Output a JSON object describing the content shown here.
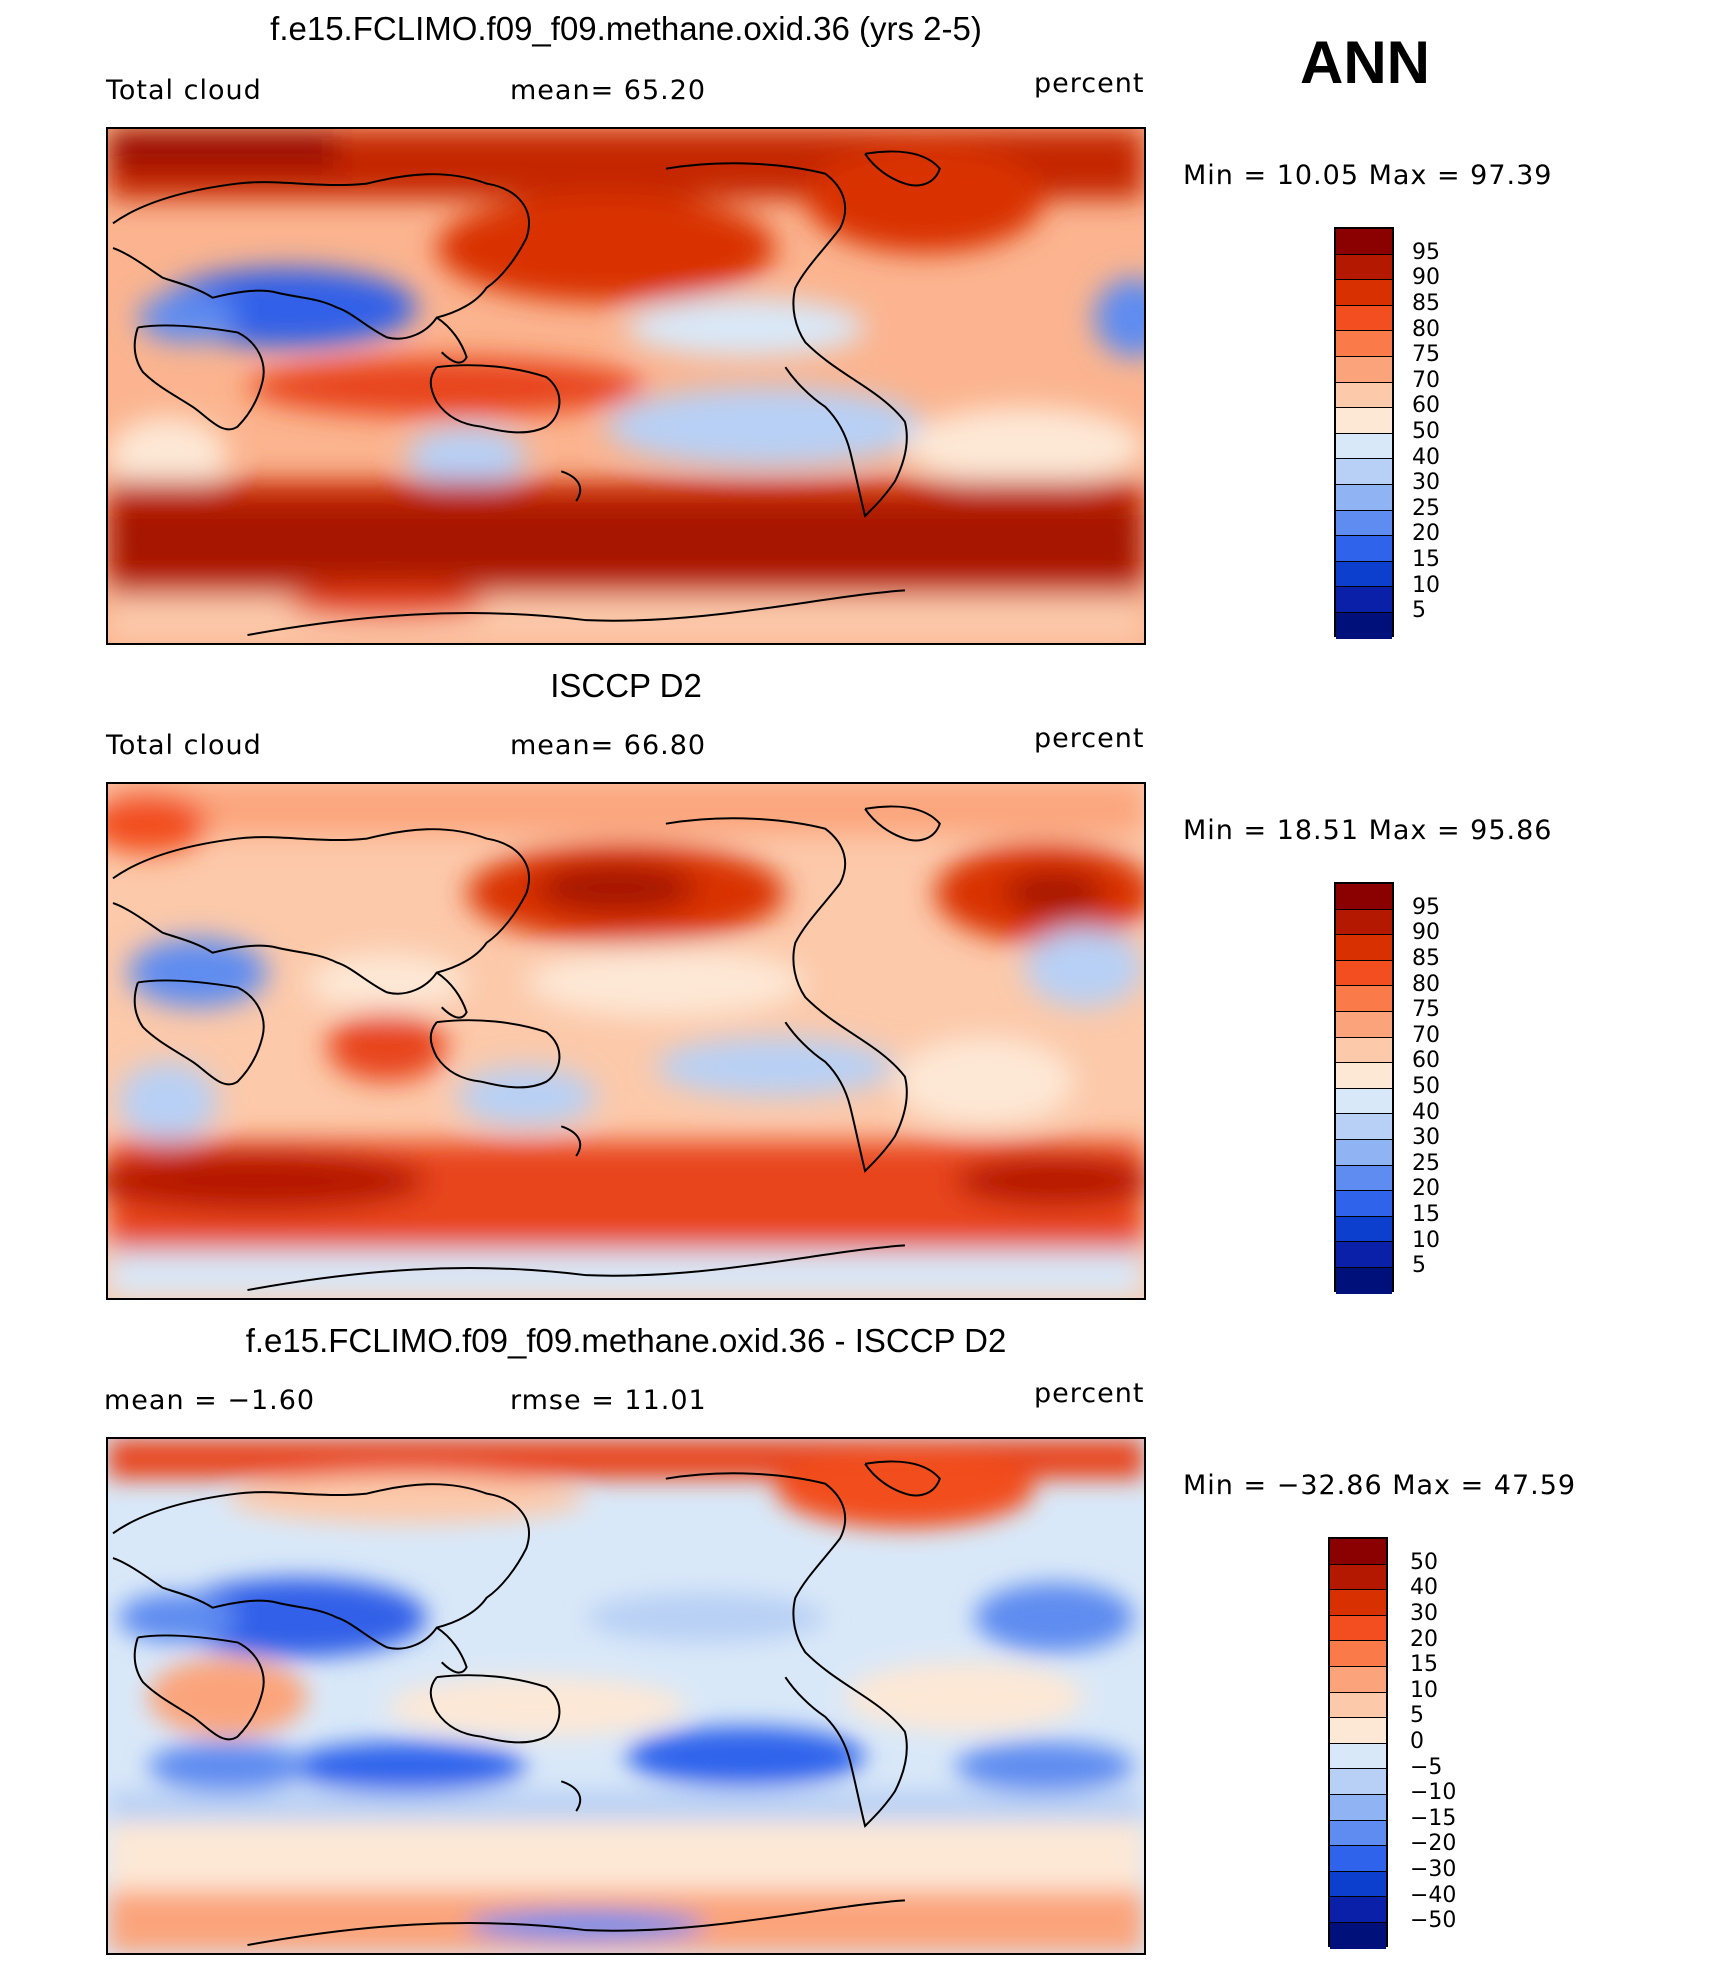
{
  "season": "ANN",
  "panels": [
    {
      "title": "f.e15.FCLIMO.f09_f09.methane.oxid.36 (yrs 2-5)",
      "left_label": "Total cloud",
      "mid_label": "mean=   65.20",
      "units": "percent",
      "minmax": "Min  =   10.05  Max  =   97.39",
      "colorbar": {
        "labels": [
          "95",
          "90",
          "85",
          "80",
          "75",
          "70",
          "60",
          "50",
          "40",
          "30",
          "25",
          "20",
          "15",
          "10",
          "5"
        ],
        "colors": [
          "#8b0000",
          "#b51800",
          "#d93000",
          "#f24e1f",
          "#fa7a4a",
          "#fba47c",
          "#fcc9aa",
          "#fde8d6",
          "#d9e8f8",
          "#b8d0f5",
          "#8fb3f3",
          "#5e8cf0",
          "#2f63ec",
          "#0d3fcf",
          "#0a20a8",
          "#00107a"
        ]
      },
      "map_variant": "model"
    },
    {
      "title": "ISCCP D2",
      "left_label": "Total cloud",
      "mid_label": "mean=   66.80",
      "units": "percent",
      "minmax": "Min  =   18.51  Max  =   95.86",
      "colorbar": {
        "labels": [
          "95",
          "90",
          "85",
          "80",
          "75",
          "70",
          "60",
          "50",
          "40",
          "30",
          "25",
          "20",
          "15",
          "10",
          "5"
        ],
        "colors": [
          "#8b0000",
          "#b51800",
          "#d93000",
          "#f24e1f",
          "#fa7a4a",
          "#fba47c",
          "#fcc9aa",
          "#fde8d6",
          "#d9e8f8",
          "#b8d0f5",
          "#8fb3f3",
          "#5e8cf0",
          "#2f63ec",
          "#0d3fcf",
          "#0a20a8",
          "#00107a"
        ]
      },
      "map_variant": "obs"
    },
    {
      "title": "f.e15.FCLIMO.f09_f09.methane.oxid.36 - ISCCP D2",
      "left_label": "mean  =    −1.60",
      "mid_label": "rmse  =    11.01",
      "units": "percent",
      "minmax": "Min  = −32.86  Max  =    47.59",
      "colorbar": {
        "labels": [
          "50",
          "40",
          "30",
          "20",
          "15",
          "10",
          "5",
          "0",
          "−5",
          "−10",
          "−15",
          "−20",
          "−30",
          "−40",
          "−50"
        ],
        "colors": [
          "#8b0000",
          "#b51800",
          "#d93000",
          "#f24e1f",
          "#fa7a4a",
          "#fba47c",
          "#fcc9aa",
          "#fde8d6",
          "#d9e8f8",
          "#b8d0f5",
          "#8fb3f3",
          "#5e8cf0",
          "#2f63ec",
          "#0d3fcf",
          "#0a20a8",
          "#00107a"
        ]
      },
      "map_variant": "diff"
    }
  ]
}
